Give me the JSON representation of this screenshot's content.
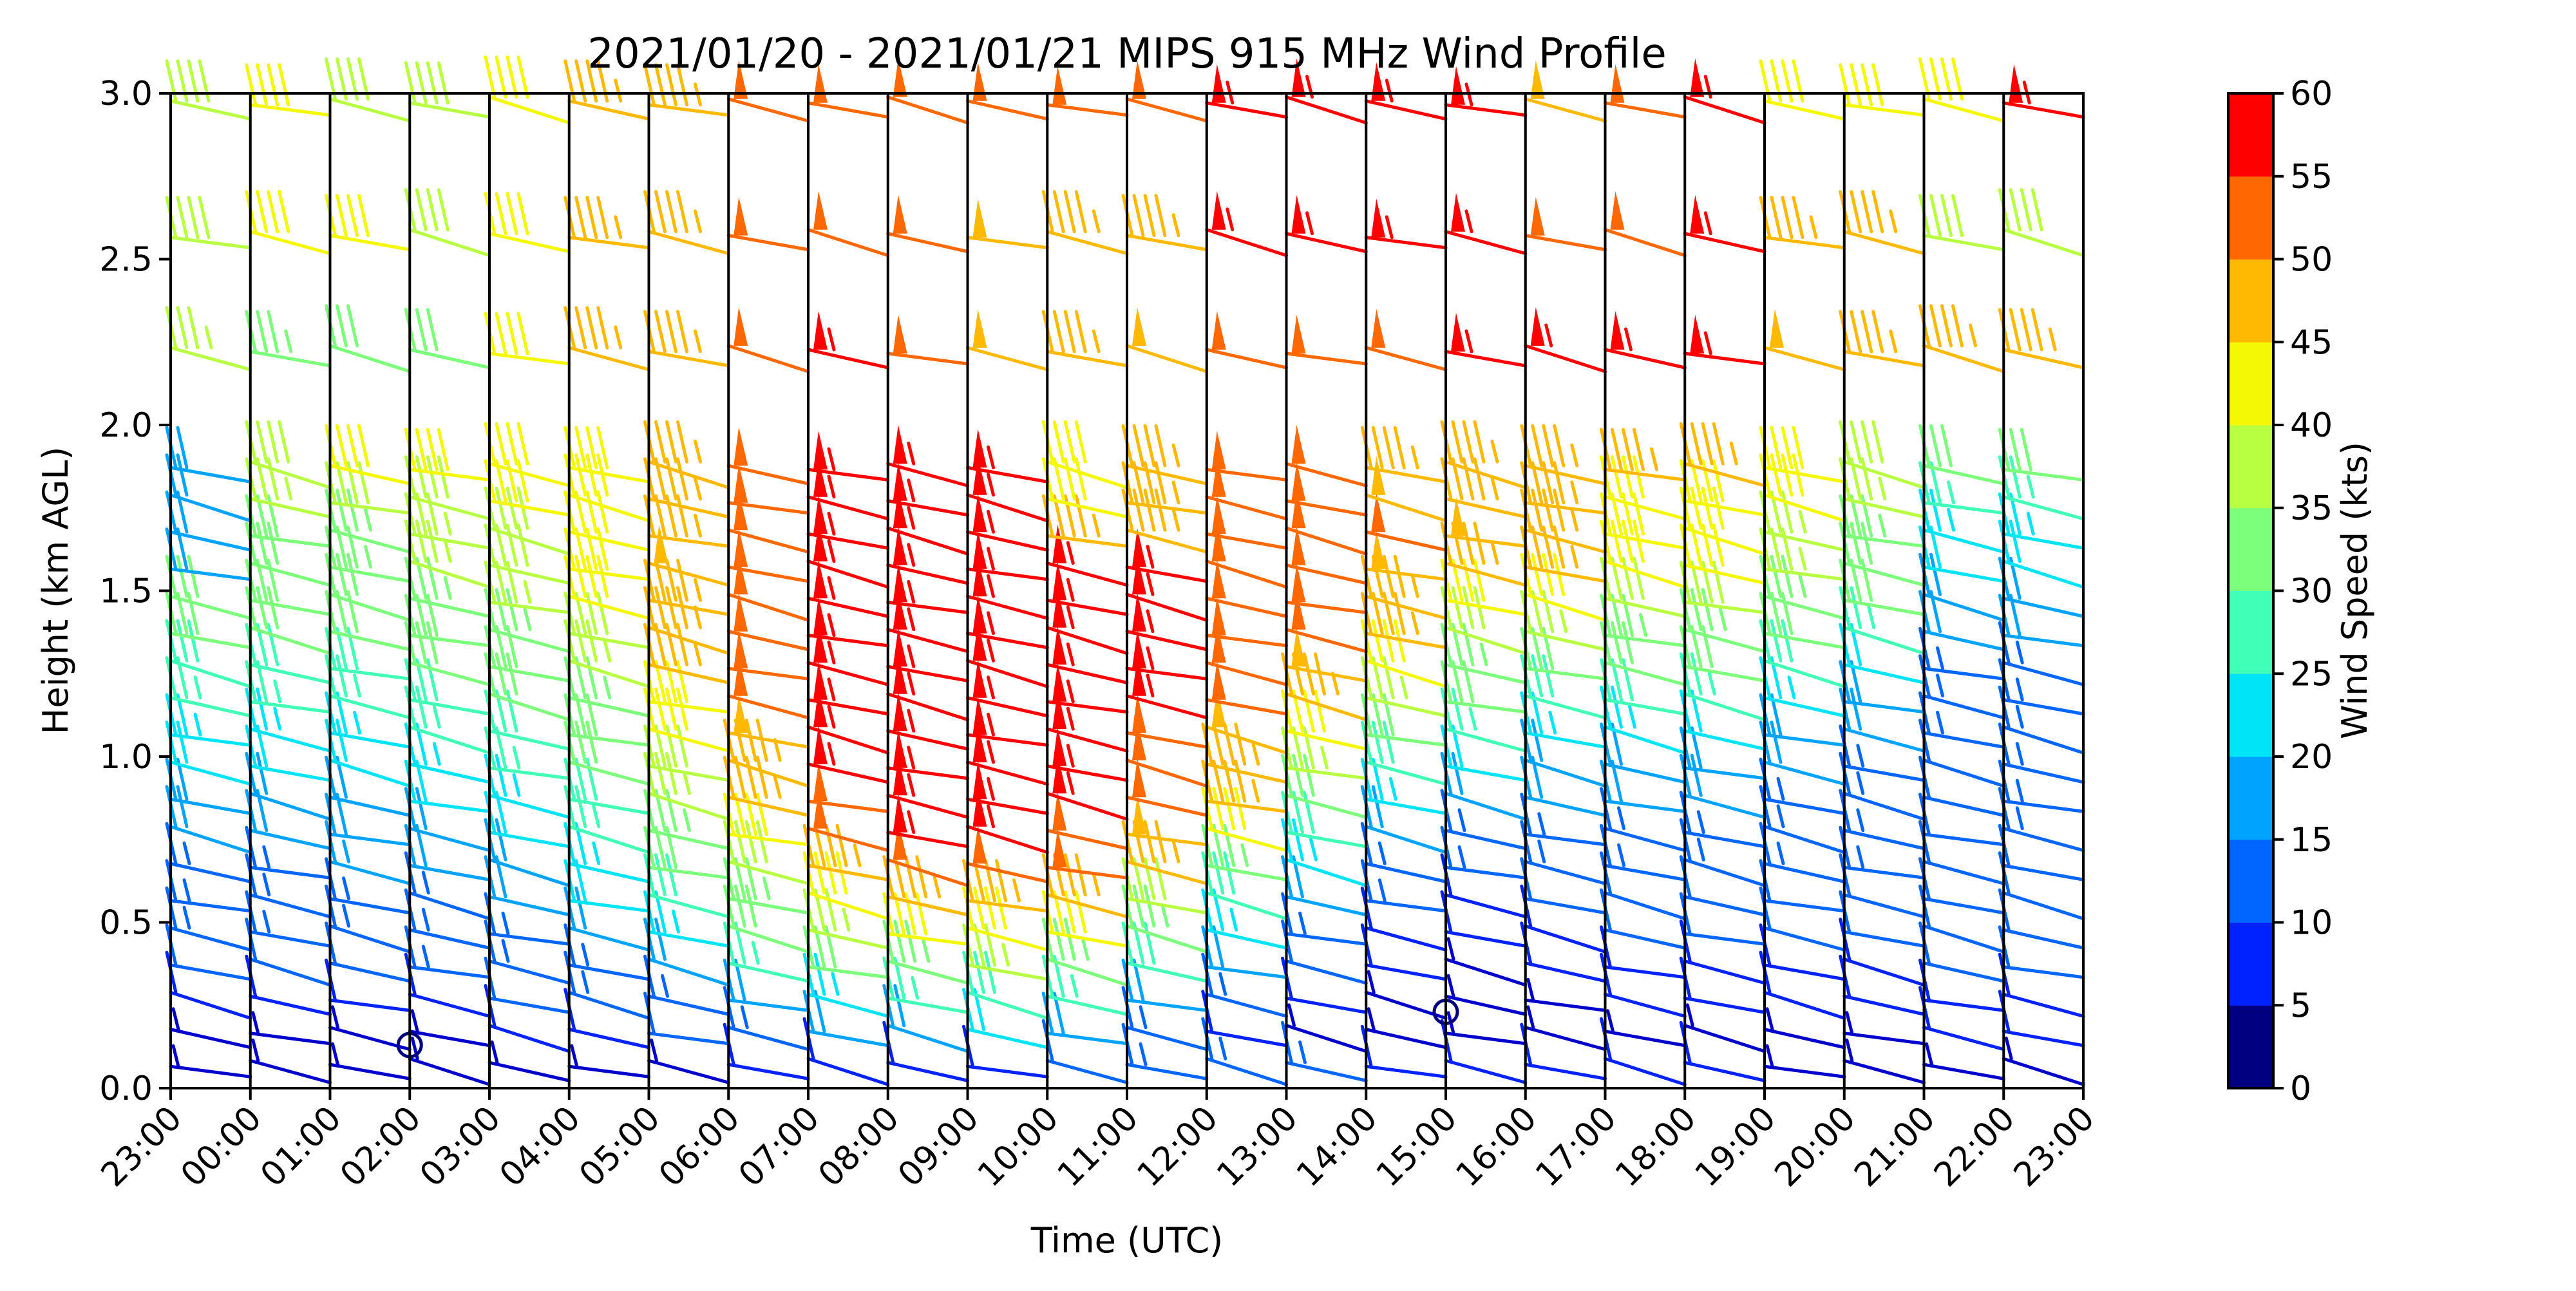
{
  "chart_data": {
    "type": "wind_barb_profile",
    "title": "2021/01/20 - 2021/01/21 MIPS 915 MHz Wind Profile",
    "xlabel": "Time (UTC)",
    "ylabel": "Height (km AGL)",
    "colorbar_label": "Wind Speed (kts)",
    "x_ticks": [
      "23:00",
      "00:00",
      "01:00",
      "02:00",
      "03:00",
      "04:00",
      "05:00",
      "06:00",
      "07:00",
      "08:00",
      "09:00",
      "10:00",
      "11:00",
      "12:00",
      "13:00",
      "14:00",
      "15:00",
      "16:00",
      "17:00",
      "18:00",
      "19:00",
      "20:00",
      "21:00",
      "22:00",
      "23:00"
    ],
    "y_ticks": [
      "0.0",
      "0.5",
      "1.0",
      "1.5",
      "2.0",
      "2.5",
      "3.0"
    ],
    "ylim": [
      0,
      3.0
    ],
    "colorbar_ticks": [
      "0",
      "5",
      "10",
      "15",
      "20",
      "25",
      "30",
      "35",
      "40",
      "45",
      "50",
      "55",
      "60"
    ],
    "colorbar_range": [
      0,
      60
    ],
    "colorbar_colors": [
      "#000080",
      "#0000cd",
      "#0022ff",
      "#0066ff",
      "#00a4ff",
      "#00e4f8",
      "#40ffb7",
      "#7cff7a",
      "#b7ff40",
      "#f4f802",
      "#ffb900",
      "#ff6800",
      "#ff0000",
      "#800000"
    ],
    "grid": false,
    "profile_time_grid": [
      "23:00",
      "00:00",
      "01:00",
      "02:00",
      "03:00",
      "04:00",
      "05:00",
      "06:00",
      "07:00",
      "08:00",
      "09:00",
      "10:00",
      "11:00",
      "12:00",
      "13:00",
      "14:00",
      "15:00",
      "16:00",
      "17:00",
      "18:00",
      "19:00",
      "20:00",
      "21:00",
      "22:00",
      "23:00"
    ],
    "height_levels_km": [
      0.05,
      0.15,
      0.25,
      0.35,
      0.45,
      0.55,
      0.65,
      0.75,
      0.85,
      0.95,
      1.05,
      1.15,
      1.25,
      1.35,
      1.45,
      1.55,
      1.65,
      1.75,
      1.85,
      2.2,
      2.55,
      2.95
    ],
    "wind_speed_kts_by_height": [
      [
        3,
        4,
        4,
        4,
        4,
        4,
        6,
        8,
        8,
        8,
        10,
        12,
        14,
        16,
        15,
        10,
        8,
        8,
        8,
        8,
        6,
        4,
        4,
        4
      ],
      [
        6,
        6,
        6,
        5,
        8,
        10,
        12,
        15,
        18,
        20,
        22,
        20,
        15,
        10,
        6,
        4,
        4,
        4,
        4,
        4,
        6,
        6,
        8,
        8
      ],
      [
        10,
        10,
        10,
        10,
        12,
        14,
        16,
        20,
        24,
        26,
        28,
        26,
        20,
        14,
        10,
        6,
        4,
        6,
        8,
        8,
        8,
        8,
        10,
        10
      ],
      [
        12,
        12,
        12,
        13,
        14,
        16,
        20,
        26,
        30,
        34,
        36,
        34,
        28,
        20,
        12,
        8,
        6,
        8,
        10,
        10,
        10,
        10,
        12,
        12
      ],
      [
        14,
        14,
        14,
        15,
        16,
        18,
        24,
        30,
        36,
        40,
        42,
        40,
        34,
        24,
        14,
        10,
        8,
        10,
        12,
        12,
        12,
        12,
        12,
        12
      ],
      [
        15,
        16,
        16,
        16,
        18,
        22,
        28,
        34,
        42,
        46,
        46,
        44,
        38,
        28,
        20,
        14,
        10,
        12,
        12,
        12,
        12,
        12,
        12,
        12
      ],
      [
        16,
        16,
        17,
        18,
        20,
        24,
        30,
        38,
        46,
        50,
        52,
        50,
        44,
        34,
        24,
        16,
        14,
        14,
        14,
        14,
        14,
        14,
        12,
        12
      ],
      [
        18,
        18,
        18,
        20,
        22,
        26,
        34,
        42,
        50,
        54,
        54,
        52,
        48,
        40,
        28,
        20,
        16,
        16,
        16,
        16,
        14,
        14,
        12,
        14
      ],
      [
        20,
        20,
        20,
        22,
        24,
        28,
        36,
        44,
        52,
        56,
        56,
        54,
        50,
        44,
        32,
        24,
        20,
        18,
        18,
        18,
        16,
        14,
        12,
        14
      ],
      [
        22,
        22,
        22,
        24,
        26,
        30,
        38,
        46,
        54,
        56,
        56,
        56,
        52,
        46,
        36,
        28,
        22,
        20,
        20,
        20,
        18,
        16,
        12,
        14
      ],
      [
        24,
        24,
        24,
        26,
        28,
        32,
        40,
        48,
        54,
        56,
        56,
        56,
        52,
        48,
        40,
        32,
        26,
        24,
        24,
        22,
        20,
        18,
        14,
        14
      ],
      [
        26,
        26,
        26,
        28,
        30,
        34,
        42,
        50,
        54,
        56,
        56,
        56,
        54,
        50,
        44,
        36,
        30,
        28,
        28,
        26,
        24,
        20,
        16,
        14
      ],
      [
        28,
        28,
        28,
        30,
        32,
        36,
        44,
        50,
        54,
        56,
        56,
        56,
        54,
        52,
        48,
        40,
        34,
        32,
        30,
        30,
        28,
        22,
        16,
        16
      ],
      [
        30,
        30,
        30,
        32,
        34,
        38,
        44,
        52,
        54,
        56,
        56,
        56,
        54,
        52,
        50,
        44,
        38,
        36,
        34,
        34,
        32,
        26,
        18,
        18
      ],
      [
        30,
        32,
        32,
        34,
        36,
        40,
        46,
        52,
        54,
        56,
        56,
        56,
        54,
        52,
        50,
        46,
        42,
        40,
        38,
        38,
        34,
        30,
        20,
        20
      ],
      [
        20,
        32,
        34,
        36,
        38,
        42,
        48,
        52,
        54,
        56,
        56,
        56,
        54,
        52,
        52,
        48,
        46,
        44,
        40,
        40,
        36,
        32,
        22,
        22
      ],
      [
        20,
        32,
        34,
        36,
        38,
        42,
        46,
        52,
        54,
        56,
        56,
        46,
        46,
        52,
        52,
        50,
        48,
        44,
        42,
        40,
        36,
        34,
        24,
        24
      ],
      [
        20,
        36,
        38,
        38,
        40,
        42,
        46,
        52,
        54,
        56,
        56,
        42,
        44,
        52,
        52,
        48,
        44,
        44,
        42,
        40,
        40,
        36,
        26,
        26
      ],
      [
        20,
        38,
        40,
        40,
        40,
        42,
        44,
        52,
        54,
        56,
        56,
        42,
        44,
        52,
        52,
        46,
        44,
        44,
        44,
        44,
        40,
        38,
        30,
        30
      ],
      [
        36,
        34,
        32,
        32,
        42,
        44,
        46,
        52,
        54,
        52,
        48,
        44,
        48,
        52,
        52,
        52,
        54,
        54,
        54,
        54,
        48,
        46,
        46,
        46
      ],
      [
        38,
        40,
        40,
        38,
        42,
        44,
        46,
        52,
        50,
        50,
        48,
        44,
        46,
        54,
        54,
        56,
        56,
        50,
        52,
        56,
        46,
        46,
        38,
        38
      ],
      [
        38,
        40,
        38,
        38,
        42,
        44,
        44,
        52,
        52,
        52,
        50,
        50,
        52,
        54,
        54,
        56,
        56,
        48,
        52,
        54,
        42,
        40,
        42,
        54
      ]
    ]
  }
}
